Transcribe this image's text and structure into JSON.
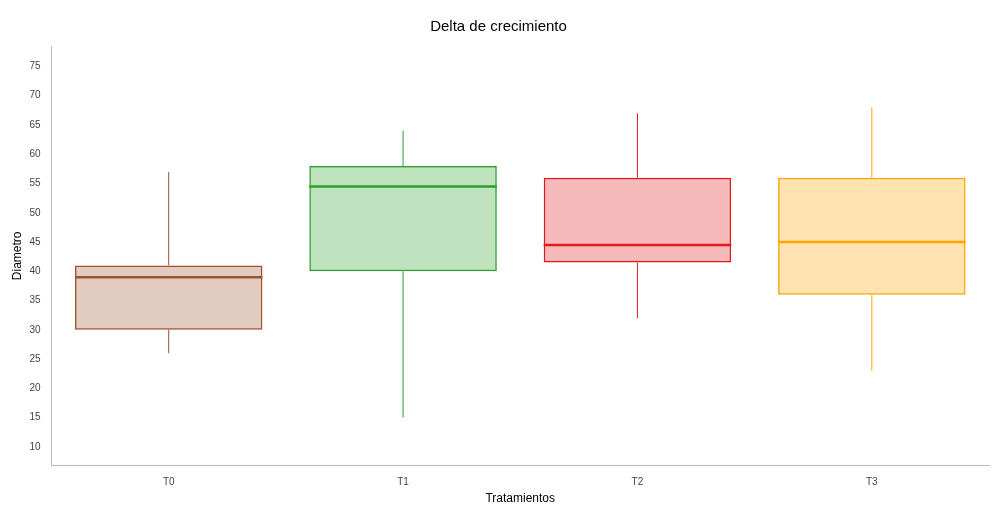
{
  "chart_data": {
    "type": "box",
    "title": "Delta de crecimiento",
    "xlabel": "Tratamientos",
    "ylabel": "Diametro",
    "categories": [
      "T0",
      "T1",
      "T2",
      "T3"
    ],
    "boxes": [
      {
        "low": 26,
        "q1": 30,
        "median": 39,
        "q3": 41,
        "high": 57
      },
      {
        "low": 15,
        "q1": 40,
        "median": 54.5,
        "q3": 58,
        "high": 64
      },
      {
        "low": 32,
        "q1": 41.5,
        "median": 44.5,
        "q3": 56,
        "high": 67
      },
      {
        "low": 23,
        "q1": 36,
        "median": 45,
        "q3": 56,
        "high": 68
      }
    ],
    "colors": [
      "#a0522d",
      "#2ca02c",
      "#e31a1c",
      "#ffa500"
    ],
    "ylim": [
      6.8,
      78.5
    ],
    "yticks": [
      10,
      15,
      20,
      25,
      30,
      35,
      40,
      45,
      50,
      55,
      60,
      65,
      70,
      75
    ],
    "grid": false
  }
}
